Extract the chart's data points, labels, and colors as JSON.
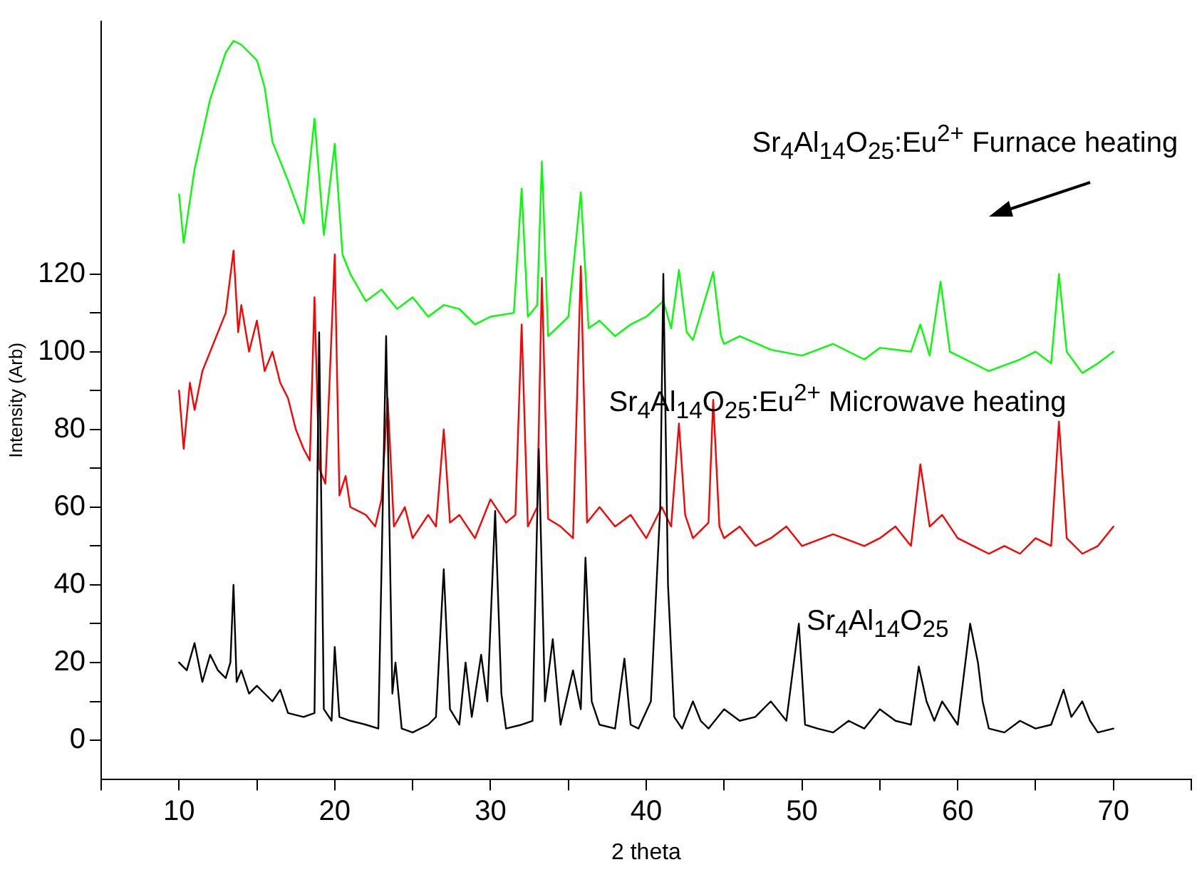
{
  "chart_data": {
    "type": "line",
    "xlabel": "2 theta",
    "ylabel": "Intensity (Arb)",
    "xlim": [
      5,
      75
    ],
    "ylim": [
      -10,
      185
    ],
    "xticks": [
      {
        "value": 5,
        "label": null
      },
      10,
      {
        "value": 15,
        "label": null
      },
      20,
      {
        "value": 25,
        "label": null
      },
      30,
      {
        "value": 35,
        "label": null
      },
      40,
      {
        "value": 45,
        "label": null
      },
      50,
      {
        "value": 55,
        "label": null
      },
      60,
      {
        "value": 65,
        "label": null
      },
      70,
      {
        "value": 75,
        "label": null
      }
    ],
    "yticks": [
      0,
      {
        "value": 10,
        "label": null
      },
      20,
      {
        "value": 30,
        "label": null
      },
      40,
      {
        "value": 50,
        "label": null
      },
      60,
      {
        "value": 70,
        "label": null
      },
      80,
      {
        "value": 90,
        "label": null
      },
      100,
      {
        "value": 110,
        "label": null
      },
      120
    ],
    "grid": false,
    "legend": false,
    "marker": "none",
    "line_style": "solid",
    "series": [
      {
        "name": "Sr$_{4}$Al$_{14}$O$_{25}$",
        "color": "#000000",
        "x": [
          10,
          10.5,
          11,
          11.5,
          12,
          12.5,
          13,
          13.3,
          13.5,
          13.7,
          14,
          14.5,
          15,
          16,
          16.5,
          17,
          18,
          18.7,
          19,
          19.3,
          19.8,
          20,
          20.3,
          21,
          22,
          22.8,
          23.3,
          23.7,
          23.9,
          24.3,
          25,
          26,
          26.5,
          27,
          27.4,
          28,
          28.4,
          28.8,
          29.4,
          29.8,
          30.3,
          30.7,
          31,
          32,
          32.7,
          33.1,
          33.5,
          34,
          34.5,
          35.3,
          35.8,
          36.1,
          36.5,
          37,
          38,
          38.6,
          39,
          39.5,
          40.3,
          40.9,
          41.1,
          41.4,
          41.8,
          42.3,
          43,
          43.5,
          44,
          45,
          46,
          47,
          48,
          49,
          49.8,
          50.2,
          51,
          52,
          53,
          54,
          55,
          56,
          57,
          57.5,
          58,
          58.5,
          59,
          60,
          60.8,
          61.3,
          61.6,
          62,
          63,
          64,
          65,
          66,
          66.8,
          67.3,
          68,
          68.5,
          69,
          70
        ],
        "values": [
          20,
          18,
          25,
          15,
          22,
          18,
          16,
          20,
          40,
          15,
          18,
          12,
          14,
          10,
          13,
          7,
          6,
          7,
          105,
          8,
          5,
          24,
          6,
          5,
          4,
          3,
          104,
          12,
          20,
          3,
          2,
          4,
          6,
          44,
          8,
          4,
          20,
          6,
          22,
          10,
          59,
          12,
          3,
          4,
          5,
          75,
          10,
          26,
          4,
          18,
          8,
          47,
          10,
          4,
          3,
          21,
          4,
          3,
          10,
          60,
          120,
          40,
          6,
          3,
          10,
          5,
          3,
          8,
          5,
          6,
          10,
          5,
          30,
          4,
          3,
          2,
          5,
          3,
          8,
          5,
          4,
          19,
          10,
          5,
          10,
          4,
          30,
          20,
          10,
          3,
          2,
          5,
          3,
          4,
          13,
          6,
          10,
          5,
          2,
          3
        ]
      },
      {
        "name": "Sr$_{4}$Al$_{14}$O$_{25}$:Eu$^{2+}$ Microwave heating",
        "color": "#ff0000",
        "x": [
          10,
          10.3,
          10.7,
          11,
          11.5,
          12,
          12.5,
          13,
          13.5,
          13.8,
          14,
          14.5,
          15,
          15.5,
          16,
          16.5,
          17,
          17.5,
          18,
          18.4,
          18.7,
          19,
          19.4,
          20,
          20.3,
          20.7,
          21,
          22,
          22.6,
          23,
          23.4,
          23.8,
          24.5,
          25,
          26,
          26.5,
          27,
          27.4,
          28,
          29,
          30,
          31,
          31.6,
          32,
          32.4,
          33,
          33.3,
          33.7,
          34.5,
          35.3,
          35.8,
          36.2,
          37,
          38,
          39,
          40,
          41,
          41.6,
          42.1,
          42.5,
          43,
          44,
          44.3,
          44.7,
          45,
          46,
          47,
          48,
          49,
          50,
          52,
          54,
          55,
          56,
          57,
          57.6,
          58.2,
          59,
          60,
          61,
          62,
          63,
          64,
          65,
          66,
          66.5,
          67,
          68,
          69,
          70
        ],
        "values": [
          90,
          75,
          92,
          85,
          95,
          100,
          105,
          110,
          126,
          105,
          112,
          100,
          108,
          95,
          100,
          92,
          88,
          80,
          75,
          72,
          114,
          70,
          66,
          125,
          63,
          68,
          60,
          58,
          55,
          62,
          88,
          55,
          60,
          52,
          58,
          55,
          80,
          56,
          58,
          52,
          62,
          56,
          58,
          107,
          55,
          60,
          119,
          57,
          55,
          52,
          122,
          56,
          60,
          55,
          58,
          52,
          60,
          55,
          81.5,
          58,
          52,
          56,
          87.6,
          55,
          52,
          55,
          50,
          52,
          55,
          50,
          53,
          50,
          52,
          55,
          50,
          71,
          55,
          58,
          52,
          50,
          48,
          50,
          48,
          52,
          50,
          82,
          52,
          48,
          50,
          55
        ]
      },
      {
        "name": "Sr$_{4}$Al$_{14}$O$_{25}$:Eu$^{2+}$ Furnace heating",
        "color": "#00ff00",
        "x": [
          10,
          10.3,
          11,
          12,
          13,
          13.5,
          14,
          15,
          15.5,
          16,
          17,
          18,
          18.7,
          19.3,
          20,
          20.5,
          21,
          22,
          23,
          24,
          25,
          26,
          27,
          28,
          29,
          30,
          31.5,
          32,
          32.4,
          33,
          33.3,
          33.7,
          35,
          35.8,
          36.3,
          37,
          38,
          39,
          40,
          41.1,
          41.6,
          42.1,
          42.6,
          43,
          44.3,
          44.8,
          45,
          46,
          48,
          50,
          52,
          54,
          55,
          57,
          57.6,
          58.2,
          58.9,
          59.5,
          61,
          62,
          64,
          65,
          66,
          66.5,
          67,
          68,
          69,
          70
        ],
        "values": [
          140.5,
          128,
          147,
          165,
          177,
          180,
          179,
          175,
          168,
          154,
          144,
          133,
          160,
          130,
          153.5,
          125,
          120,
          113,
          116,
          111,
          114,
          109,
          112,
          111,
          107,
          109,
          110,
          142,
          109,
          112,
          149,
          104,
          109,
          141,
          106,
          108,
          104,
          107,
          109,
          113,
          106,
          121,
          105,
          103,
          120.5,
          104,
          102,
          104,
          100.5,
          99,
          102,
          98,
          101,
          100,
          107,
          99,
          118,
          100,
          97,
          95,
          98,
          100,
          97,
          120,
          100,
          94.5,
          97,
          100
        ]
      }
    ]
  }
}
